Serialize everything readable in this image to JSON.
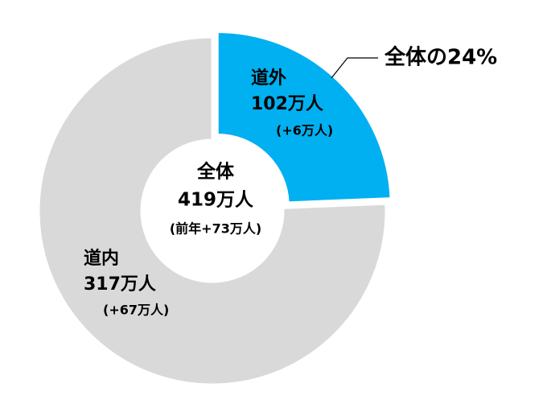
{
  "chart_data": {
    "type": "donut",
    "categories": [
      "道外",
      "道内"
    ],
    "values": [
      102,
      317
    ],
    "value_labels": [
      "102万人",
      "317万人"
    ],
    "change_labels": [
      "(+6万人)",
      "(+67万人)"
    ],
    "colors": [
      "#00b0f0",
      "#d9d9d9"
    ],
    "center_title": "全体",
    "center_value": "419万人",
    "center_change": "(前年+73万人)",
    "annotation": "全体の24%",
    "annotation_color": "#00b0f0"
  }
}
